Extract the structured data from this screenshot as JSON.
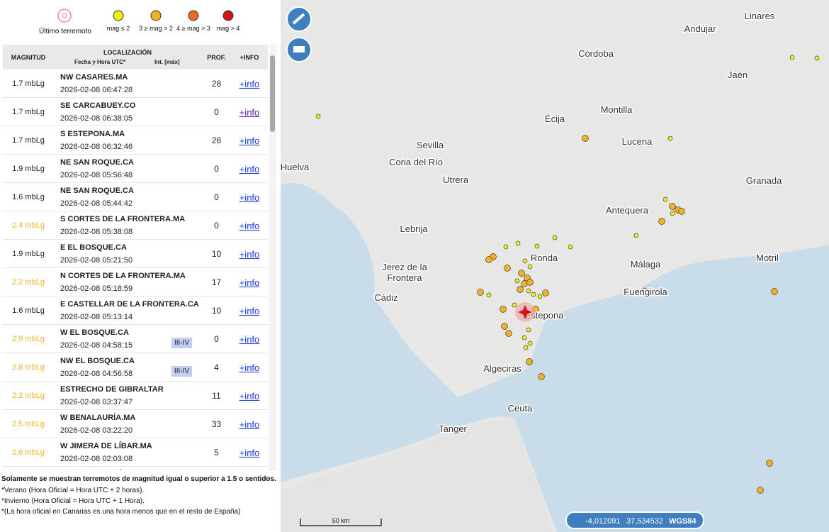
{
  "legend": {
    "latest_label": "Último terremoto",
    "items": [
      {
        "label": "mag ≤ 2",
        "color": "#f2ee12"
      },
      {
        "label": "3 ≥ mag > 2",
        "color": "#f5b125"
      },
      {
        "label": "4 ≥ mag > 3",
        "color": "#f06a1e"
      },
      {
        "label": "mag > 4",
        "color": "#d01616"
      }
    ]
  },
  "table": {
    "header": {
      "magnitude": "MAGNITUD",
      "location": "LOCALIZACIÓN",
      "datetime": "Fecha y Hora UTC*",
      "intensity": "Int. [máx]",
      "depth": "PROF.",
      "info": "+INFO"
    },
    "rows": [
      {
        "magnitude": "1.7 mbLg",
        "location": "NW CASARES.MA",
        "datetime": "2026-02-08 06:47:28",
        "depth": 28,
        "info": "+info"
      },
      {
        "magnitude": "1.7 mbLg",
        "location": "SE CARCABUEY.CO",
        "datetime": "2026-02-08 06:38:05",
        "depth": 0,
        "info": "+info",
        "visited": true
      },
      {
        "magnitude": "1.7 mbLg",
        "location": "S ESTEPONA.MA",
        "datetime": "2026-02-08 06:32:46",
        "depth": 26,
        "info": "+info"
      },
      {
        "magnitude": "1.9 mbLg",
        "location": "NE SAN ROQUE.CA",
        "datetime": "2026-02-08 05:56:48",
        "depth": 0,
        "info": "+info"
      },
      {
        "magnitude": "1.6 mbLg",
        "location": "NE SAN ROQUE.CA",
        "datetime": "2026-02-08 05:44:42",
        "depth": 0,
        "info": "+info"
      },
      {
        "magnitude": "2.4 mbLg",
        "location": "S CORTES DE LA FRONTERA.MA",
        "datetime": "2026-02-08 05:38:08",
        "depth": 0,
        "info": "+info"
      },
      {
        "magnitude": "1.9 mbLg",
        "location": "E EL BOSQUE.CA",
        "datetime": "2026-02-08 05:21:50",
        "depth": 10,
        "info": "+info"
      },
      {
        "magnitude": "2.2 mbLg",
        "location": "N CORTES DE LA FRONTERA.MA",
        "datetime": "2026-02-08 05:18:59",
        "depth": 17,
        "info": "+info"
      },
      {
        "magnitude": "1.6 mbLg",
        "location": "E CASTELLAR DE LA FRONTERA.CA",
        "datetime": "2026-02-08 05:13:14",
        "depth": 10,
        "info": "+info"
      },
      {
        "magnitude": "2.9 mbLg",
        "location": "W EL BOSQUE.CA",
        "datetime": "2026-02-08 04:58:15",
        "intensity": "III-IV",
        "depth": 0,
        "info": "+info"
      },
      {
        "magnitude": "2.8 mbLg",
        "location": "NW EL BOSQUE.CA",
        "datetime": "2026-02-08 04:56:58",
        "intensity": "III-IV",
        "depth": 4,
        "info": "+info"
      },
      {
        "magnitude": "2.2 mbLg",
        "location": "ESTRECHO DE GIBRALTAR",
        "datetime": "2026-02-08 03:37:47",
        "depth": 11,
        "info": "+info"
      },
      {
        "magnitude": "2.5 mbLg",
        "location": "W BENALAURÍA.MA",
        "datetime": "2026-02-08 03:22:20",
        "depth": 33,
        "info": "+info"
      },
      {
        "magnitude": "2.6 mbLg",
        "location": "W JIMERA DE LÍBAR.MA",
        "datetime": "2026-02-08 02:03:08",
        "depth": 5,
        "info": "+info"
      },
      {
        "location": "W JIMERA DE LÍBAR.MA"
      }
    ]
  },
  "notes": [
    "Solamente se muestran terremotos de magnitud igual o superior a 1.5 o sentidos.",
    "*Verano (Hora Oficial = Hora UTC + 2 horas).",
    "*Invierno (Hora Oficial = Hora UTC + 1 Hora).",
    "*(La hora oficial en Canarias es una hora menos que en el resto de España)"
  ],
  "map": {
    "places": [
      "Linares",
      "Andújar",
      "Córdoba",
      "Jaén",
      "Écija",
      "Montilla",
      "Sevilla",
      "Lucena",
      "Coria del Río",
      "Huelva",
      "Granada",
      "Utrera",
      "Antequera",
      "Lebrija",
      "Ronda",
      "Jerez de la Frontera",
      "Málaga",
      "Motril",
      "Cádiz",
      "Fuengirola",
      "Estepona",
      "Algeciras",
      "Ceuta",
      "Tanger"
    ],
    "scale": "50 km",
    "coords": {
      "lon": "-4,012091",
      "lat": "37,534532",
      "datum": "WGS84"
    }
  }
}
